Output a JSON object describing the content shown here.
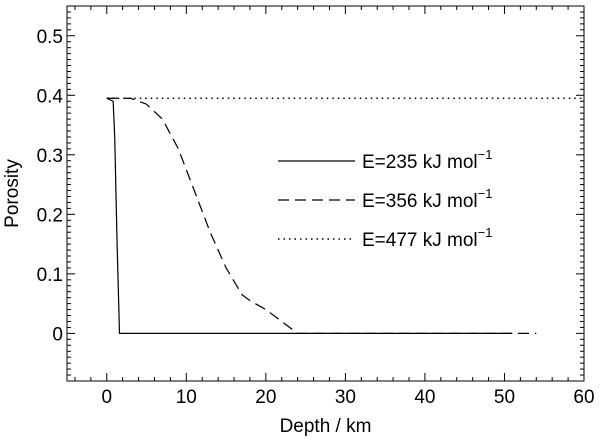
{
  "chart_data": {
    "type": "line",
    "xlabel": "Depth / km",
    "ylabel": "Porosity",
    "xlim": [
      -5,
      60
    ],
    "ylim": [
      -0.08,
      0.55
    ],
    "xticks": [
      0,
      10,
      20,
      30,
      40,
      50,
      60
    ],
    "yticks": [
      0,
      0.1,
      0.2,
      0.3,
      0.4,
      0.5
    ],
    "xtick_labels": [
      "0",
      "10",
      "20",
      "30",
      "40",
      "50",
      "60"
    ],
    "ytick_labels": [
      "0",
      "0.1",
      "0.2",
      "0.3",
      "0.4",
      "0.5"
    ],
    "grid": false,
    "legend_position": "center-right",
    "series": [
      {
        "name_main": "E=235 kJ mol",
        "name_sup": "−1",
        "style": "solid",
        "x": [
          0,
          0.8,
          1.0,
          1.3,
          1.6,
          2.0,
          51
        ],
        "y": [
          0.395,
          0.39,
          0.33,
          0.15,
          0.0,
          0.0,
          0.0
        ]
      },
      {
        "name_main": "E=356 kJ mol",
        "name_sup": "−1",
        "style": "dashed",
        "x": [
          0,
          3,
          5,
          7,
          9,
          11,
          13,
          15,
          17,
          18,
          20,
          22,
          24,
          30,
          40,
          54
        ],
        "y": [
          0.395,
          0.395,
          0.385,
          0.36,
          0.31,
          0.24,
          0.17,
          0.11,
          0.065,
          0.055,
          0.04,
          0.02,
          0.0,
          0.0,
          0.0,
          0.0
        ]
      },
      {
        "name_main": "E=477 kJ mol",
        "name_sup": "−1",
        "style": "dotted",
        "x": [
          0,
          60
        ],
        "y": [
          0.395,
          0.395
        ]
      }
    ]
  }
}
